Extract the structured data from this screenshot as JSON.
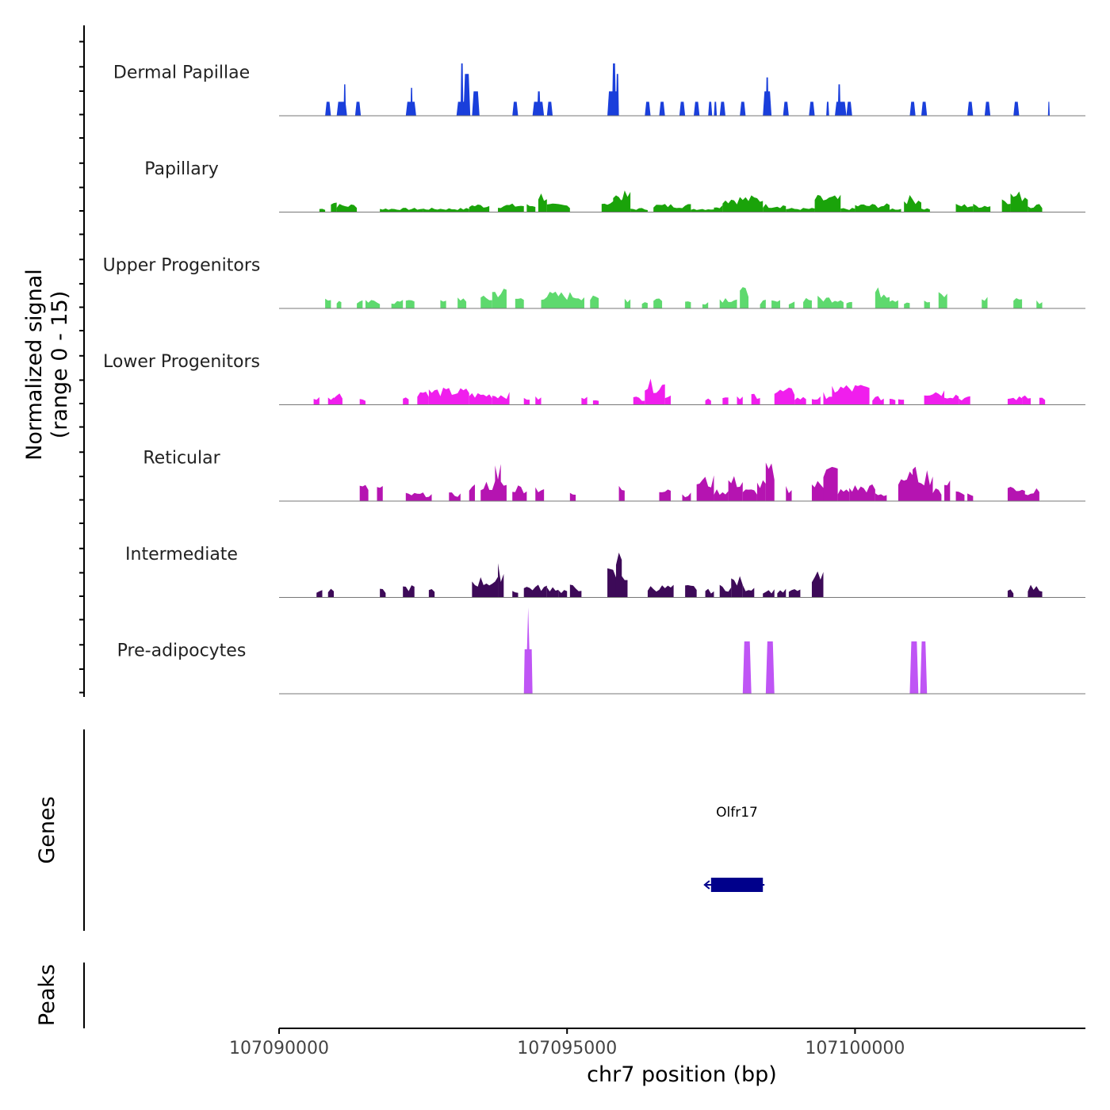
{
  "chart_data": {
    "type": "area",
    "title": "",
    "ylabel": "Normalized signal",
    "ylabel_range": "(range 0 - 15)",
    "xlabel": "chr7 position (bp)",
    "xlim": [
      107090000,
      107104000
    ],
    "ylim": [
      0,
      15
    ],
    "x_ticks": [
      107090000,
      107095000,
      107100000
    ],
    "x_tick_labels": [
      "107090000",
      "107095000",
      "107100000"
    ],
    "bin_bp": 50,
    "tracks": [
      {
        "name": "Dermal Papillae",
        "color": "#1a3fdb",
        "mode": "bars",
        "peaks": [
          [
            107090800,
            107090900,
            4
          ],
          [
            107091000,
            107091180,
            4
          ],
          [
            107091120,
            107091160,
            9
          ],
          [
            107091320,
            107091420,
            4
          ],
          [
            107092200,
            107092380,
            4
          ],
          [
            107092280,
            107092320,
            8
          ],
          [
            107093080,
            107093320,
            4
          ],
          [
            107093150,
            107093200,
            15
          ],
          [
            107093200,
            107093320,
            12
          ],
          [
            107093350,
            107093480,
            7
          ],
          [
            107094050,
            107094150,
            4
          ],
          [
            107094400,
            107094600,
            4
          ],
          [
            107094480,
            107094540,
            7
          ],
          [
            107094650,
            107094750,
            4
          ],
          [
            107095700,
            107095900,
            7
          ],
          [
            107095780,
            107095850,
            15
          ],
          [
            107095850,
            107095900,
            12
          ],
          [
            107096350,
            107096450,
            4
          ],
          [
            107096600,
            107096700,
            4
          ],
          [
            107096950,
            107097050,
            4
          ],
          [
            107097200,
            107097300,
            4
          ],
          [
            107097450,
            107097520,
            4
          ],
          [
            107097550,
            107097600,
            4
          ],
          [
            107097650,
            107097750,
            4
          ],
          [
            107098000,
            107098100,
            4
          ],
          [
            107098400,
            107098550,
            7
          ],
          [
            107098450,
            107098500,
            11
          ],
          [
            107098750,
            107098850,
            4
          ],
          [
            107099200,
            107099300,
            4
          ],
          [
            107099500,
            107099550,
            4
          ],
          [
            107099650,
            107099850,
            4
          ],
          [
            107099700,
            107099750,
            9
          ],
          [
            107099850,
            107099950,
            4
          ],
          [
            107100950,
            107101050,
            4
          ],
          [
            107101150,
            107101250,
            4
          ],
          [
            107101950,
            107102050,
            4
          ],
          [
            107102250,
            107102350,
            4
          ],
          [
            107102750,
            107102850,
            4
          ],
          [
            107103350,
            107103380,
            4
          ]
        ]
      },
      {
        "name": "Papillary",
        "color": "#1aa30a",
        "mode": "noisy",
        "level": 1,
        "peaks": [
          [
            107090700,
            107090800,
            1
          ],
          [
            107090900,
            107091000,
            3
          ],
          [
            107091000,
            107091350,
            2
          ],
          [
            107091750,
            107092500,
            1
          ],
          [
            107092500,
            107093300,
            1
          ],
          [
            107093300,
            107093650,
            2
          ],
          [
            107093800,
            107094250,
            2
          ],
          [
            107094300,
            107094450,
            2
          ],
          [
            107094500,
            107094650,
            5
          ],
          [
            107094650,
            107095050,
            2
          ],
          [
            107095600,
            107096000,
            3
          ],
          [
            107095800,
            107096100,
            5
          ],
          [
            107096100,
            107096400,
            1
          ],
          [
            107096500,
            107097150,
            2
          ],
          [
            107097150,
            107097600,
            1
          ],
          [
            107097550,
            107097700,
            2
          ],
          [
            107097700,
            107098400,
            4
          ],
          [
            107098400,
            107098800,
            2
          ],
          [
            107098800,
            107099300,
            1
          ],
          [
            107099300,
            107099750,
            4
          ],
          [
            107099750,
            107100000,
            1
          ],
          [
            107100000,
            107100600,
            2
          ],
          [
            107100600,
            107100800,
            1
          ],
          [
            107100850,
            107101150,
            4
          ],
          [
            107101150,
            107101300,
            1
          ],
          [
            107101750,
            107102050,
            2
          ],
          [
            107102050,
            107102350,
            2
          ],
          [
            107102550,
            107102700,
            4
          ],
          [
            107102700,
            107103000,
            5
          ],
          [
            107103000,
            107103250,
            2
          ]
        ]
      },
      {
        "name": "Upper Progenitors",
        "color": "#5ed96e",
        "mode": "noisy",
        "level": 1,
        "peaks": [
          [
            107090800,
            107090900,
            3
          ],
          [
            107091000,
            107091080,
            2
          ],
          [
            107091350,
            107091450,
            2
          ],
          [
            107091500,
            107091750,
            2
          ],
          [
            107091950,
            107092150,
            2
          ],
          [
            107092200,
            107092350,
            3
          ],
          [
            107092800,
            107092900,
            2
          ],
          [
            107093100,
            107093250,
            3
          ],
          [
            107093500,
            107093700,
            3
          ],
          [
            107093700,
            107093950,
            5
          ],
          [
            107094100,
            107094250,
            3
          ],
          [
            107094550,
            107095300,
            4
          ],
          [
            107095400,
            107095550,
            3
          ],
          [
            107096000,
            107096100,
            3
          ],
          [
            107096300,
            107096400,
            2
          ],
          [
            107096500,
            107096650,
            3
          ],
          [
            107097050,
            107097150,
            2
          ],
          [
            107097350,
            107097450,
            2
          ],
          [
            107097650,
            107097950,
            3
          ],
          [
            107098000,
            107098150,
            5
          ],
          [
            107098350,
            107098450,
            2
          ],
          [
            107098550,
            107098700,
            2
          ],
          [
            107098850,
            107098950,
            2
          ],
          [
            107099100,
            107099250,
            3
          ],
          [
            107099350,
            107099800,
            3
          ],
          [
            107099850,
            107099950,
            2
          ],
          [
            107100350,
            107100600,
            5
          ],
          [
            107100600,
            107100750,
            3
          ],
          [
            107100850,
            107100950,
            2
          ],
          [
            107101200,
            107101300,
            2
          ],
          [
            107101450,
            107101600,
            4
          ],
          [
            107102200,
            107102300,
            3
          ],
          [
            107102750,
            107102900,
            3
          ],
          [
            107103150,
            107103250,
            2
          ]
        ]
      },
      {
        "name": "Lower Progenitors",
        "color": "#f01eed",
        "mode": "noisy",
        "level": 1,
        "peaks": [
          [
            107090600,
            107090700,
            2
          ],
          [
            107090850,
            107090950,
            2
          ],
          [
            107090950,
            107091100,
            3
          ],
          [
            107091400,
            107091500,
            2
          ],
          [
            107092150,
            107092250,
            2
          ],
          [
            107092400,
            107092600,
            4
          ],
          [
            107092600,
            107093300,
            4
          ],
          [
            107093300,
            107093700,
            3
          ],
          [
            107093700,
            107094000,
            3
          ],
          [
            107094250,
            107094350,
            2
          ],
          [
            107094450,
            107094550,
            2
          ],
          [
            107095250,
            107095350,
            2
          ],
          [
            107095450,
            107095550,
            2
          ],
          [
            107096150,
            107096350,
            2
          ],
          [
            107096350,
            107096700,
            6
          ],
          [
            107096700,
            107096800,
            3
          ],
          [
            107097400,
            107097500,
            2
          ],
          [
            107097700,
            107097800,
            2
          ],
          [
            107097950,
            107098050,
            2
          ],
          [
            107098200,
            107098350,
            3
          ],
          [
            107098600,
            107098950,
            4
          ],
          [
            107098950,
            107099150,
            2
          ],
          [
            107099250,
            107099400,
            2
          ],
          [
            107099450,
            107099700,
            3
          ],
          [
            107099600,
            107100250,
            5
          ],
          [
            107100300,
            107100500,
            2
          ],
          [
            107100600,
            107100700,
            2
          ],
          [
            107100750,
            107100850,
            2
          ],
          [
            107101200,
            107101550,
            4
          ],
          [
            107101550,
            107101800,
            3
          ],
          [
            107101800,
            107102000,
            2
          ],
          [
            107102650,
            107102900,
            2
          ],
          [
            107102900,
            107103050,
            3
          ],
          [
            107103200,
            107103300,
            2
          ]
        ]
      },
      {
        "name": "Reticular",
        "color": "#b514b1",
        "mode": "noisy",
        "level": 1,
        "peaks": [
          [
            107091400,
            107091550,
            4
          ],
          [
            107091700,
            107091800,
            4
          ],
          [
            107092200,
            107092650,
            2
          ],
          [
            107092950,
            107093150,
            2
          ],
          [
            107093300,
            107093400,
            4
          ],
          [
            107093500,
            107093950,
            5
          ],
          [
            107093750,
            107093850,
            10
          ],
          [
            107094050,
            107094300,
            4
          ],
          [
            107094450,
            107094600,
            4
          ],
          [
            107095050,
            107095150,
            2
          ],
          [
            107095900,
            107096000,
            4
          ],
          [
            107096600,
            107096800,
            4
          ],
          [
            107097000,
            107097150,
            2
          ],
          [
            107097250,
            107097550,
            6
          ],
          [
            107097550,
            107097800,
            3
          ],
          [
            107097800,
            107098050,
            6
          ],
          [
            107098050,
            107098300,
            3
          ],
          [
            107098300,
            107098450,
            5
          ],
          [
            107098450,
            107098600,
            9
          ],
          [
            107098800,
            107098900,
            4
          ],
          [
            107099250,
            107099550,
            5
          ],
          [
            107099450,
            107099700,
            9
          ],
          [
            107099700,
            107099900,
            3
          ],
          [
            107099900,
            107100350,
            4
          ],
          [
            107100350,
            107100550,
            2
          ],
          [
            107100750,
            107101100,
            7
          ],
          [
            107101000,
            107101350,
            8
          ],
          [
            107101350,
            107101500,
            3
          ],
          [
            107101550,
            107101650,
            6
          ],
          [
            107101750,
            107101900,
            3
          ],
          [
            107101950,
            107102050,
            2
          ],
          [
            107102650,
            107102950,
            4
          ],
          [
            107102900,
            107103200,
            3
          ]
        ]
      },
      {
        "name": "Intermediate",
        "color": "#3d0a58",
        "mode": "noisy",
        "level": 1,
        "peaks": [
          [
            107090650,
            107090750,
            2
          ],
          [
            107090850,
            107090950,
            2
          ],
          [
            107091750,
            107091850,
            2
          ],
          [
            107092150,
            107092350,
            3
          ],
          [
            107092600,
            107092700,
            2
          ],
          [
            107093350,
            107093800,
            5
          ],
          [
            107093800,
            107093900,
            8
          ],
          [
            107094050,
            107094150,
            2
          ],
          [
            107094250,
            107094650,
            3
          ],
          [
            107094650,
            107094850,
            3
          ],
          [
            107094850,
            107095000,
            2
          ],
          [
            107095050,
            107095250,
            3
          ],
          [
            107095700,
            107096050,
            7
          ],
          [
            107095850,
            107095950,
            11
          ],
          [
            107096400,
            107096850,
            3
          ],
          [
            107097050,
            107097250,
            3
          ],
          [
            107097400,
            107097550,
            2
          ],
          [
            107097650,
            107097850,
            3
          ],
          [
            107097850,
            107098050,
            5
          ],
          [
            107098050,
            107098250,
            3
          ],
          [
            107098400,
            107098600,
            2
          ],
          [
            107098650,
            107098800,
            2
          ],
          [
            107098850,
            107099050,
            2
          ],
          [
            107099250,
            107099450,
            6
          ],
          [
            107102650,
            107102750,
            2
          ],
          [
            107103000,
            107103250,
            3
          ]
        ]
      },
      {
        "name": "Pre-adipocytes",
        "color": "#bf55f5",
        "mode": "bars",
        "peaks": [
          [
            107094250,
            107094400,
            15,
            "spike"
          ],
          [
            107098050,
            107098200,
            15
          ],
          [
            107098450,
            107098600,
            15
          ],
          [
            107100950,
            107101100,
            15
          ],
          [
            107101130,
            107101250,
            15
          ]
        ]
      }
    ],
    "genes": [
      {
        "name": "Olfr17",
        "start": 107097500,
        "end": 107098400,
        "strand": "-",
        "color": "#00008b"
      }
    ],
    "genes_label": "Genes",
    "peaks_label": "Peaks",
    "peaks": []
  }
}
